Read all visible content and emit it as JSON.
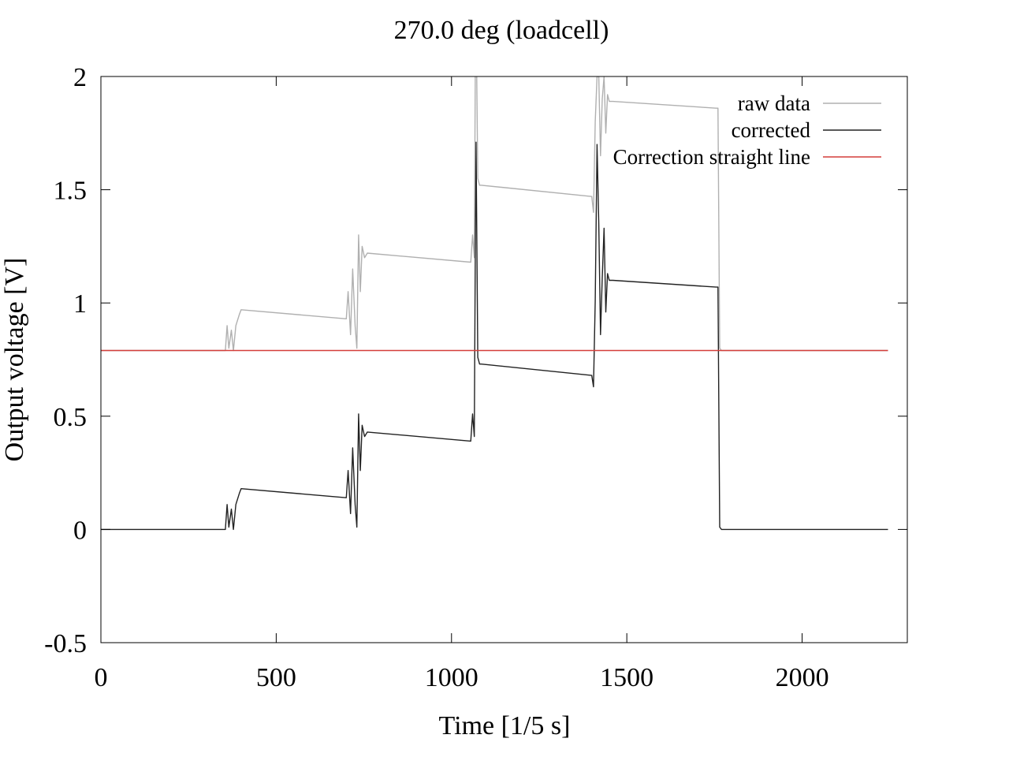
{
  "chart_data": {
    "type": "line",
    "title": "270.0 deg (loadcell)",
    "xlabel": "Time [1/5 s]",
    "ylabel": "Output voltage [V]",
    "xlim": [
      0,
      2300
    ],
    "ylim": [
      -0.5,
      2
    ],
    "xticks": [
      0,
      500,
      1000,
      1500,
      2000
    ],
    "xtick_labels": [
      "0",
      "500",
      "1000",
      "1500",
      "2000"
    ],
    "yticks": [
      -0.5,
      0,
      0.5,
      1,
      1.5,
      2
    ],
    "ytick_labels": [
      "-0.5",
      "0",
      "0.5",
      "1",
      "1.5",
      "2"
    ],
    "grid": false,
    "legend_position": "top-right",
    "series": [
      {
        "name": "raw data",
        "color": "#b0b0b0",
        "x": [
          0,
          355,
          360,
          365,
          372,
          378,
          385,
          395,
          400,
          700,
          705,
          712,
          718,
          725,
          730,
          735,
          740,
          745,
          752,
          760,
          1055,
          1060,
          1065,
          1068,
          1070,
          1075,
          1080,
          1085,
          1400,
          1405,
          1410,
          1415,
          1420,
          1425,
          1430,
          1435,
          1440,
          1445,
          1450,
          1460,
          1755,
          1760,
          1765,
          1770,
          2245
        ],
        "y": [
          0.79,
          0.79,
          0.9,
          0.8,
          0.88,
          0.79,
          0.9,
          0.95,
          0.97,
          0.93,
          1.05,
          0.86,
          1.15,
          0.9,
          0.8,
          1.3,
          1.05,
          1.25,
          1.2,
          1.22,
          1.18,
          1.3,
          1.2,
          2.05,
          2.3,
          1.55,
          1.52,
          1.52,
          1.47,
          1.4,
          1.8,
          2.0,
          2.0,
          1.65,
          1.9,
          2.0,
          1.75,
          1.92,
          1.89,
          1.89,
          1.86,
          1.86,
          0.8,
          0.79,
          0.79
        ]
      },
      {
        "name": "corrected",
        "color": "#222222",
        "x": [
          0,
          355,
          360,
          365,
          372,
          378,
          385,
          395,
          400,
          700,
          705,
          712,
          718,
          725,
          730,
          735,
          740,
          745,
          752,
          760,
          1055,
          1060,
          1065,
          1068,
          1070,
          1075,
          1080,
          1085,
          1400,
          1405,
          1410,
          1415,
          1420,
          1425,
          1430,
          1435,
          1440,
          1445,
          1450,
          1460,
          1755,
          1760,
          1765,
          1770,
          2245
        ],
        "y": [
          0.0,
          0.0,
          0.11,
          0.01,
          0.09,
          0.0,
          0.11,
          0.16,
          0.18,
          0.14,
          0.26,
          0.07,
          0.36,
          0.11,
          0.01,
          0.51,
          0.26,
          0.46,
          0.41,
          0.43,
          0.39,
          0.51,
          0.41,
          1.26,
          1.71,
          0.76,
          0.73,
          0.73,
          0.68,
          0.63,
          1.01,
          1.7,
          1.35,
          0.86,
          1.11,
          1.33,
          0.96,
          1.13,
          1.1,
          1.1,
          1.07,
          1.07,
          0.01,
          0.0,
          0.0
        ]
      },
      {
        "name": "Correction straight line",
        "color": "#d43f3a",
        "x": [
          0,
          2245
        ],
        "y": [
          0.79,
          0.79
        ]
      }
    ]
  }
}
